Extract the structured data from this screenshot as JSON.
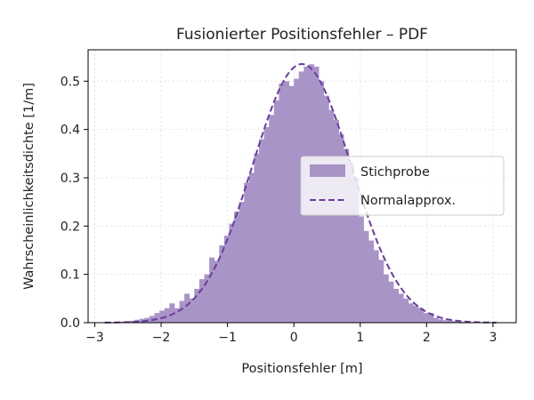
{
  "chart_data": {
    "type": "histogram",
    "title": "Fusionierter Positionsfehler – PDF",
    "xlabel": "Positionsfehler [m]",
    "ylabel": "Wahrscheinlichkeitsdichte [1/m]",
    "xlim": [
      -3.1,
      3.35
    ],
    "ylim": [
      0,
      0.565
    ],
    "xticks": [
      -3,
      -2,
      -1,
      0,
      1,
      2,
      3
    ],
    "xtick_labels": [
      "−3",
      "−2",
      "−1",
      "0",
      "1",
      "2",
      "3"
    ],
    "yticks": [
      0,
      0.1,
      0.2,
      0.3,
      0.4,
      0.5
    ],
    "ytick_labels": [
      "0.0",
      "0.1",
      "0.2",
      "0.3",
      "0.4",
      "0.5"
    ],
    "grid": true,
    "legend_position": "center-right",
    "series": [
      {
        "name": "Stichprobe",
        "kind": "histogram",
        "color": "#a994c8",
        "bin_start": -2.85,
        "bin_width": 0.075,
        "values": [
          0.0,
          0.0,
          0.0,
          0.002,
          0.003,
          0.004,
          0.006,
          0.008,
          0.01,
          0.014,
          0.02,
          0.025,
          0.03,
          0.04,
          0.03,
          0.045,
          0.06,
          0.05,
          0.07,
          0.09,
          0.1,
          0.135,
          0.128,
          0.16,
          0.18,
          0.205,
          0.23,
          0.25,
          0.29,
          0.31,
          0.35,
          0.38,
          0.405,
          0.43,
          0.46,
          0.495,
          0.5,
          0.49,
          0.505,
          0.52,
          0.53,
          0.535,
          0.53,
          0.5,
          0.47,
          0.44,
          0.42,
          0.39,
          0.36,
          0.33,
          0.3,
          0.22,
          0.19,
          0.17,
          0.15,
          0.13,
          0.1,
          0.085,
          0.07,
          0.06,
          0.05,
          0.04,
          0.035,
          0.03,
          0.02,
          0.02,
          0.01,
          0.007,
          0.005,
          0.004,
          0.003,
          0.002,
          0.001,
          0.0,
          0.0,
          0.0,
          0.0,
          0.0
        ]
      },
      {
        "name": "Normalapprox.",
        "kind": "line",
        "style": "dashed",
        "color": "#6a3d9a",
        "mean": 0.12,
        "std": 0.745,
        "x_range": [
          -2.85,
          3.05
        ]
      }
    ]
  }
}
